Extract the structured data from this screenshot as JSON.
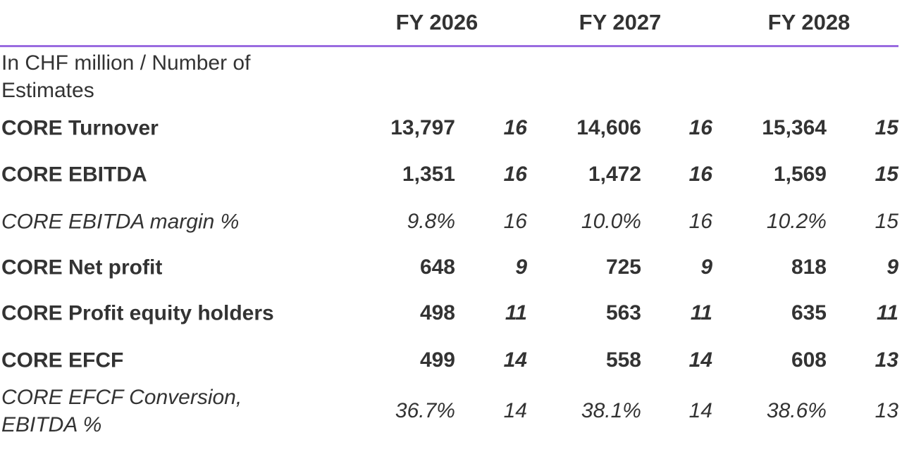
{
  "table": {
    "columns": [
      "FY 2026",
      "FY 2027",
      "FY 2028"
    ],
    "units_label": "In CHF million / Number of Estimates",
    "rows": [
      {
        "label": "CORE Turnover",
        "style": "bold",
        "cells": [
          "13,797",
          "16",
          "14,606",
          "16",
          "15,364",
          "15"
        ]
      },
      {
        "label": "CORE EBITDA",
        "style": "bold",
        "cells": [
          "1,351",
          "16",
          "1,472",
          "16",
          "1,569",
          "15"
        ]
      },
      {
        "label": "CORE EBITDA margin %",
        "style": "italic",
        "cells": [
          "9.8%",
          "16",
          "10.0%",
          "16",
          "10.2%",
          "15"
        ]
      },
      {
        "label": "CORE Net profit",
        "style": "bold",
        "cells": [
          "648",
          "9",
          "725",
          "9",
          "818",
          "9"
        ]
      },
      {
        "label": "CORE Profit equity holders",
        "style": "bold",
        "cells": [
          "498",
          "11",
          "563",
          "11",
          "635",
          "11"
        ]
      },
      {
        "label": "CORE EFCF",
        "style": "bold",
        "cells": [
          "499",
          "14",
          "558",
          "14",
          "608",
          "13"
        ]
      },
      {
        "label": "CORE EFCF Conversion, EBITDA %",
        "style": "italic",
        "cells": [
          "36.7%",
          "14",
          "38.1%",
          "14",
          "38.6%",
          "13"
        ]
      }
    ]
  }
}
